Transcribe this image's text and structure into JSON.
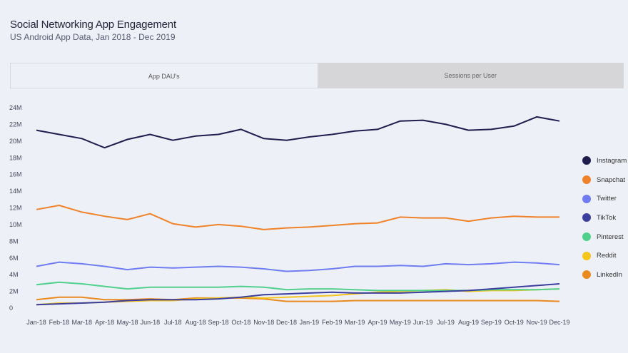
{
  "header": {
    "title": "Social Networking App Engagement",
    "subtitle": "US Android App Data, Jan 2018 - Dec 2019"
  },
  "tabs": [
    {
      "label": "App DAU's",
      "active": true
    },
    {
      "label": "Sessions per User",
      "active": false
    }
  ],
  "chart_data": {
    "type": "line",
    "title": "",
    "xlabel": "",
    "ylabel": "",
    "ylim": [
      0,
      24
    ],
    "yticks": [
      0,
      2,
      4,
      6,
      8,
      10,
      12,
      14,
      16,
      18,
      20,
      22,
      24
    ],
    "ytick_labels": [
      "0",
      "2M",
      "4M",
      "6M",
      "8M",
      "10M",
      "12M",
      "14M",
      "16M",
      "18M",
      "20M",
      "22M",
      "24M"
    ],
    "grid": false,
    "legend_position": "right",
    "categories": [
      "Jan-18",
      "Feb-18",
      "Mar-18",
      "Apr-18",
      "May-18",
      "Jun-18",
      "Jul-18",
      "Aug-18",
      "Sep-18",
      "Oct-18",
      "Nov-18",
      "Dec-18",
      "Jan-19",
      "Feb-19",
      "Mar-19",
      "Apr-19",
      "May-19",
      "Jun-19",
      "Jul-19",
      "Aug-19",
      "Sep-19",
      "Oct-19",
      "Nov-19",
      "Dec-19"
    ],
    "series": [
      {
        "name": "Instagram",
        "color": "#1f1d4e",
        "values": [
          21.3,
          20.8,
          20.3,
          19.2,
          20.2,
          20.8,
          20.1,
          20.6,
          20.8,
          21.4,
          20.3,
          20.1,
          20.5,
          20.8,
          21.2,
          21.4,
          22.4,
          22.5,
          22.0,
          21.3,
          21.4,
          21.8,
          22.9,
          22.4
        ]
      },
      {
        "name": "Snapchat",
        "color": "#f0822a",
        "values": [
          11.8,
          12.3,
          11.5,
          11.0,
          10.6,
          11.3,
          10.1,
          9.7,
          10.0,
          9.8,
          9.4,
          9.6,
          9.7,
          9.9,
          10.1,
          10.2,
          10.9,
          10.8,
          10.8,
          10.4,
          10.8,
          11.0,
          10.9,
          10.9
        ]
      },
      {
        "name": "Twitter",
        "color": "#6f7cf2",
        "values": [
          5.0,
          5.5,
          5.3,
          5.0,
          4.6,
          4.9,
          4.8,
          4.9,
          5.0,
          4.9,
          4.7,
          4.4,
          4.5,
          4.7,
          5.0,
          5.0,
          5.1,
          5.0,
          5.3,
          5.2,
          5.3,
          5.5,
          5.4,
          5.2
        ]
      },
      {
        "name": "TikTok",
        "color": "#3a3f9e",
        "values": [
          0.4,
          0.5,
          0.6,
          0.7,
          0.9,
          1.0,
          1.0,
          1.0,
          1.1,
          1.3,
          1.6,
          1.7,
          1.8,
          1.9,
          1.8,
          1.8,
          1.8,
          1.9,
          2.0,
          2.1,
          2.3,
          2.5,
          2.7,
          2.9
        ]
      },
      {
        "name": "Pinterest",
        "color": "#4fd18b",
        "values": [
          2.8,
          3.1,
          2.9,
          2.6,
          2.3,
          2.5,
          2.5,
          2.5,
          2.5,
          2.6,
          2.5,
          2.2,
          2.3,
          2.3,
          2.2,
          2.1,
          2.1,
          2.1,
          2.1,
          2.1,
          2.2,
          2.2,
          2.2,
          2.3
        ]
      },
      {
        "name": "Reddit",
        "color": "#f4c51c",
        "values": [
          0.4,
          0.6,
          0.6,
          0.7,
          0.8,
          0.9,
          0.9,
          1.1,
          1.2,
          1.3,
          1.2,
          1.3,
          1.4,
          1.5,
          1.7,
          1.9,
          2.0,
          2.1,
          2.2,
          2.0,
          2.1,
          2.1,
          2.2,
          2.3
        ]
      },
      {
        "name": "LinkedIn",
        "color": "#ea8a1e",
        "values": [
          1.0,
          1.3,
          1.3,
          1.0,
          1.0,
          1.1,
          1.0,
          1.2,
          1.2,
          1.2,
          1.1,
          0.8,
          0.8,
          0.8,
          0.9,
          0.9,
          0.9,
          0.9,
          0.9,
          0.9,
          0.9,
          0.9,
          0.9,
          0.8
        ]
      }
    ]
  }
}
